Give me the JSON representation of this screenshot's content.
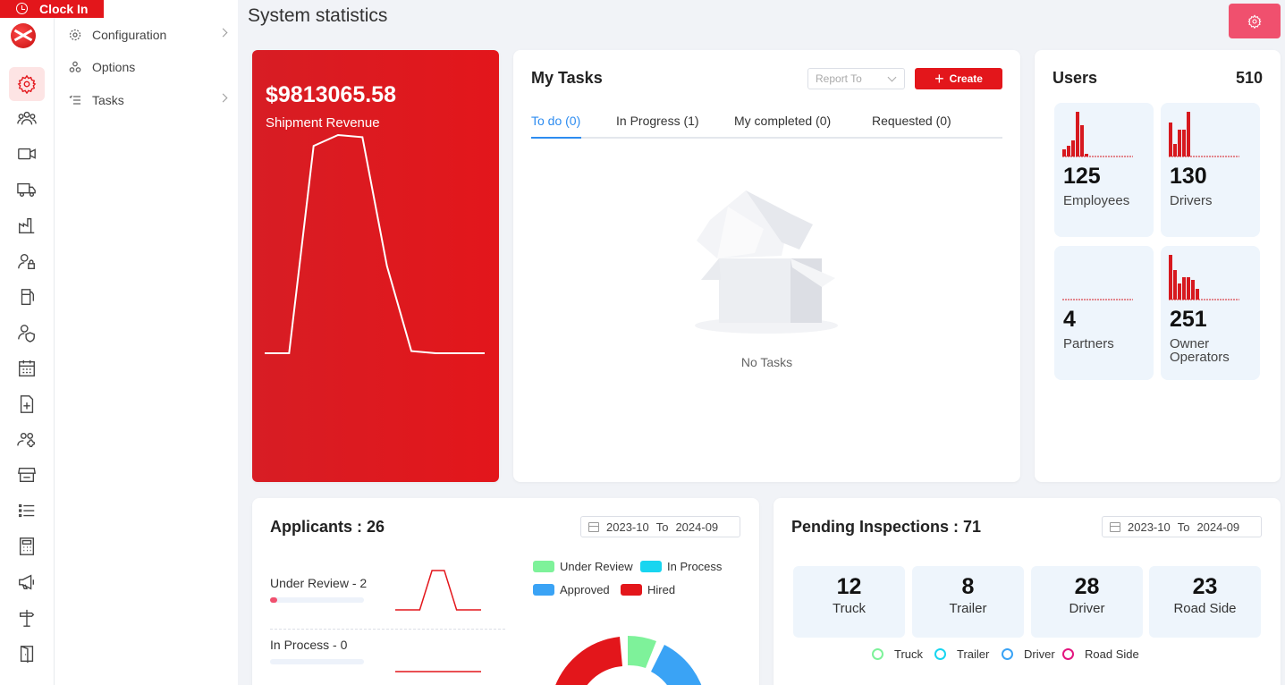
{
  "clock_in": {
    "label": "Clock In"
  },
  "page_title": "System statistics",
  "submenu": [
    {
      "label": "Configuration",
      "has_children": true
    },
    {
      "label": "Options",
      "has_children": false
    },
    {
      "label": "Tasks",
      "has_children": true
    }
  ],
  "rail_icons": [
    "settings-icon",
    "group-icon",
    "video-icon",
    "truck-icon",
    "factory-icon",
    "user-lock-icon",
    "fuel-icon",
    "user-shield-icon",
    "calendar-icon",
    "file-add-icon",
    "users-settings-icon",
    "store-icon",
    "list-icon",
    "calculator-icon",
    "megaphone-icon",
    "signpost-icon",
    "door-icon"
  ],
  "revenue": {
    "value": "$9813065.58",
    "label": "Shipment Revenue",
    "trend": [
      0,
      0,
      95,
      100,
      99,
      40,
      1,
      0,
      0,
      0
    ]
  },
  "tasks": {
    "title": "My Tasks",
    "select_placeholder": "Report To",
    "create_label": "Create",
    "tabs": [
      {
        "label": "To do (0)",
        "active": true
      },
      {
        "label": "In Progress (1)",
        "active": false
      },
      {
        "label": "My completed (0)",
        "active": false
      },
      {
        "label": "Requested (0)",
        "active": false
      }
    ],
    "empty_text": "No Tasks"
  },
  "users": {
    "title": "Users",
    "total": "510",
    "stats": [
      {
        "value": "125",
        "label": "Employees",
        "bars": [
          8,
          12,
          18,
          50,
          35,
          3
        ]
      },
      {
        "value": "130",
        "label": "Drivers",
        "bars": [
          38,
          14,
          30,
          30,
          50
        ]
      },
      {
        "value": "4",
        "label": "Partners",
        "bars": []
      },
      {
        "value": "251",
        "label": "Owner Operators",
        "bars": [
          50,
          33,
          18,
          25,
          25,
          22,
          12
        ]
      }
    ]
  },
  "applicants": {
    "title": "Applicants : 26",
    "range_from": "2023-10",
    "range_to_label": "To",
    "range_to": "2024-09",
    "rows": [
      {
        "label": "Under Review - 2",
        "progress": 0.08,
        "trend": [
          0,
          0,
          0,
          100,
          100,
          0,
          0,
          0
        ]
      },
      {
        "label": "In Process - 0",
        "progress": 0,
        "trend": [
          0,
          0,
          0,
          0,
          0,
          0,
          0,
          0
        ]
      }
    ],
    "legend": [
      {
        "label": "Under Review",
        "color": "#7ef29a"
      },
      {
        "label": "In Process",
        "color": "#18d5f0"
      },
      {
        "label": "Approved",
        "color": "#3aa3f5"
      },
      {
        "label": "Hired",
        "color": "#e3161b"
      }
    ]
  },
  "inspections": {
    "title": "Pending Inspections : 71",
    "range_from": "2023-10",
    "range_to_label": "To",
    "range_to": "2024-09",
    "stats": [
      {
        "value": "12",
        "label": "Truck"
      },
      {
        "value": "8",
        "label": "Trailer"
      },
      {
        "value": "28",
        "label": "Driver"
      },
      {
        "value": "23",
        "label": "Road Side"
      }
    ],
    "legend": [
      {
        "label": "Truck",
        "color": "#7ef29a"
      },
      {
        "label": "Trailer",
        "color": "#18d5f0"
      },
      {
        "label": "Driver",
        "color": "#3aa3f5"
      },
      {
        "label": "Road Side",
        "color": "#e3167f"
      }
    ]
  }
}
